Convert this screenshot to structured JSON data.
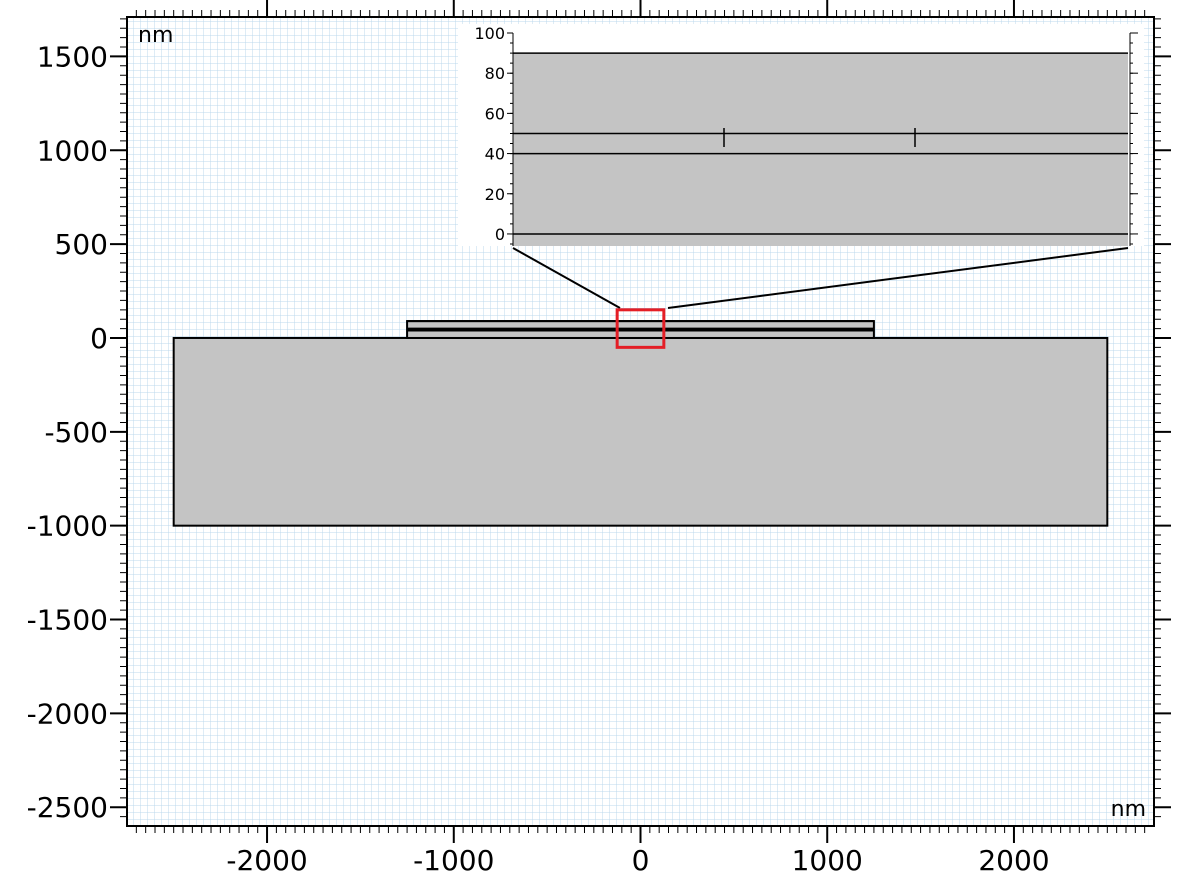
{
  "main_plot": {
    "units_top_left": "nm",
    "units_bottom_right": "nm",
    "x_ticks": [
      {
        "value": -2000,
        "label": "-2000"
      },
      {
        "value": -1000,
        "label": "-1000"
      },
      {
        "value": 0,
        "label": "0"
      },
      {
        "value": 1000,
        "label": "1000"
      },
      {
        "value": 2000,
        "label": "2000"
      }
    ],
    "y_ticks": [
      {
        "value": 1500,
        "label": "1500"
      },
      {
        "value": 1000,
        "label": "1000"
      },
      {
        "value": 500,
        "label": "500"
      },
      {
        "value": 0,
        "label": "0"
      },
      {
        "value": -500,
        "label": "-500"
      },
      {
        "value": -1000,
        "label": "-1000"
      },
      {
        "value": -1500,
        "label": "-1500"
      },
      {
        "value": -2000,
        "label": "-2000"
      },
      {
        "value": -2500,
        "label": "-2500"
      }
    ],
    "x_range": [
      -2750,
      2750
    ],
    "y_range": [
      -2600,
      1710
    ],
    "geometry": {
      "substrate": {
        "x": [
          -2500,
          2500
        ],
        "y": [
          -1000,
          0
        ]
      },
      "film": {
        "x": [
          -1250,
          1250
        ],
        "y": [
          0,
          90
        ]
      },
      "film_layer_lines_y": [
        0,
        40,
        50,
        90
      ],
      "zoom_box": {
        "x": [
          -125,
          125
        ],
        "y": [
          -50,
          150
        ]
      }
    },
    "colors": {
      "geometry_fill": "#c4c4c4",
      "grid": "#bcd8ec",
      "zoom_box": "#e41e26",
      "edge": "#000000"
    }
  },
  "inset": {
    "y_ticks": [
      {
        "value": 0,
        "label": "0"
      },
      {
        "value": 20,
        "label": "20"
      },
      {
        "value": 40,
        "label": "40"
      },
      {
        "value": 60,
        "label": "60"
      },
      {
        "value": 80,
        "label": "80"
      },
      {
        "value": 100,
        "label": "100"
      }
    ],
    "y_range": [
      -6,
      100
    ],
    "layer_lines_y": [
      0,
      40,
      50,
      90
    ]
  }
}
